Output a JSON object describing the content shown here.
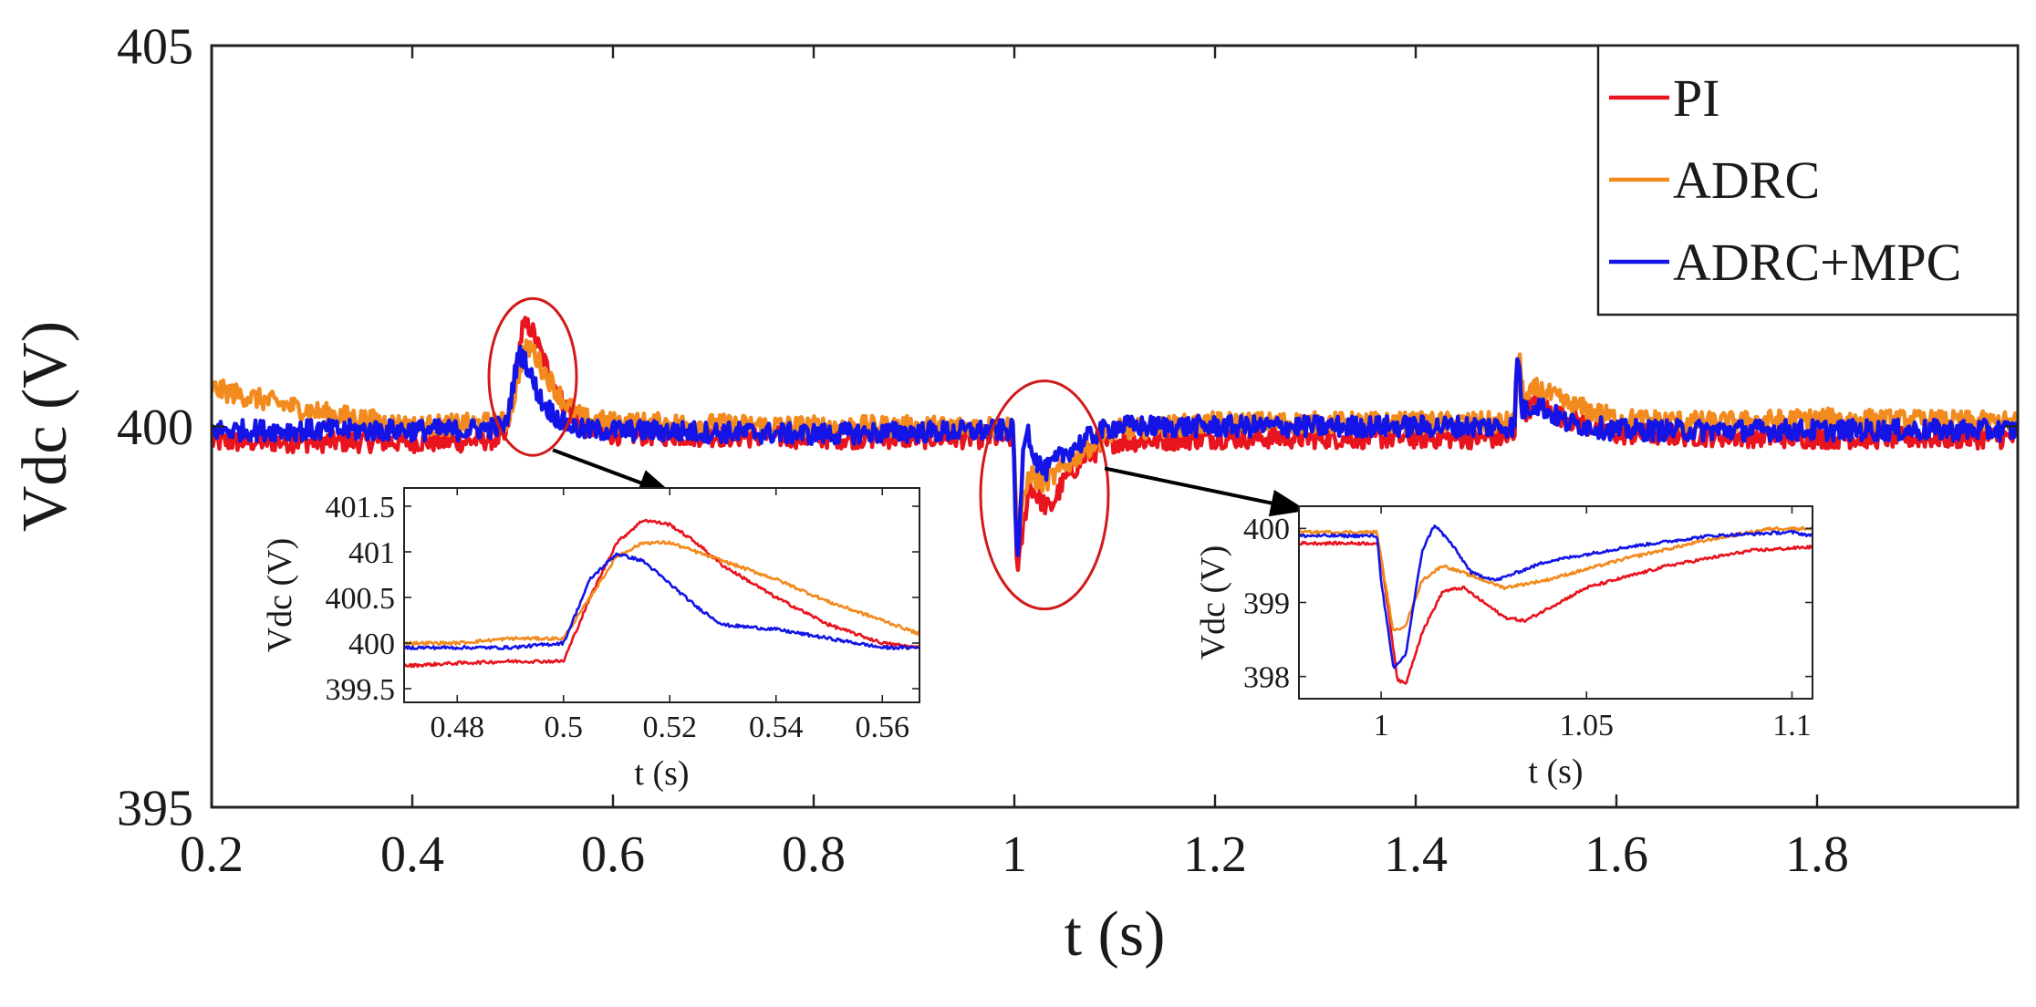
{
  "colors": {
    "PI": "#e8141e",
    "ADRC": "#f28a1e",
    "ADRC+MPC": "#1414e6",
    "callout": "#d11a1a",
    "axis": "#222222"
  },
  "chart_data": [
    {
      "id": "main",
      "type": "line",
      "xlabel": "t (s)",
      "ylabel": "Vdc (V)",
      "xlim": [
        0.2,
        2.0
      ],
      "ylim": [
        395,
        405
      ],
      "xticks": [
        0.2,
        0.4,
        0.6,
        0.8,
        1,
        1.2,
        1.4,
        1.6,
        1.8
      ],
      "xtick_labels": [
        "0.2",
        "0.4",
        "0.6",
        "0.8",
        "1",
        "1.2",
        "1.4",
        "1.6",
        "1.8"
      ],
      "yticks": [
        395,
        400,
        405
      ],
      "ytick_labels": [
        "395",
        "400",
        "405"
      ],
      "legend": {
        "position": "top-right",
        "entries": [
          "PI",
          "ADRC",
          "ADRC+MPC"
        ]
      },
      "series": [
        {
          "name": "PI",
          "points": [
            [
              0.2,
              399.8
            ],
            [
              0.45,
              399.8
            ],
            [
              0.493,
              399.85
            ],
            [
              0.5,
              400.4
            ],
            [
              0.51,
              401.3
            ],
            [
              0.518,
              401.3
            ],
            [
              0.53,
              400.9
            ],
            [
              0.55,
              400.3
            ],
            [
              0.57,
              400.0
            ],
            [
              0.6,
              399.9
            ],
            [
              0.8,
              399.85
            ],
            [
              0.999,
              399.85
            ],
            [
              1.0,
              399.6
            ],
            [
              1.003,
              398.0
            ],
            [
              1.008,
              398.6
            ],
            [
              1.015,
              399.25
            ],
            [
              1.022,
              399.1
            ],
            [
              1.035,
              398.9
            ],
            [
              1.05,
              399.3
            ],
            [
              1.07,
              399.6
            ],
            [
              1.1,
              399.8
            ],
            [
              1.2,
              399.85
            ],
            [
              1.499,
              399.85
            ],
            [
              1.5,
              400.6
            ],
            [
              1.503,
              400.8
            ],
            [
              1.508,
              400.2
            ],
            [
              1.52,
              400.3
            ],
            [
              1.55,
              400.1
            ],
            [
              1.6,
              399.9
            ],
            [
              1.8,
              399.85
            ],
            [
              2.0,
              399.85
            ]
          ]
        },
        {
          "name": "ADRC",
          "points": [
            [
              0.2,
              400.5
            ],
            [
              0.3,
              400.2
            ],
            [
              0.4,
              400.0
            ],
            [
              0.493,
              400.05
            ],
            [
              0.5,
              400.3
            ],
            [
              0.51,
              400.95
            ],
            [
              0.518,
              401.05
            ],
            [
              0.53,
              400.75
            ],
            [
              0.55,
              400.35
            ],
            [
              0.57,
              400.1
            ],
            [
              0.6,
              400.05
            ],
            [
              0.8,
              400.0
            ],
            [
              0.999,
              400.0
            ],
            [
              1.0,
              399.7
            ],
            [
              1.003,
              398.5
            ],
            [
              1.008,
              398.9
            ],
            [
              1.015,
              399.4
            ],
            [
              1.025,
              399.25
            ],
            [
              1.04,
              399.35
            ],
            [
              1.07,
              399.7
            ],
            [
              1.1,
              399.95
            ],
            [
              1.2,
              400.05
            ],
            [
              1.499,
              400.05
            ],
            [
              1.5,
              400.5
            ],
            [
              1.503,
              400.9
            ],
            [
              1.508,
              400.3
            ],
            [
              1.52,
              400.5
            ],
            [
              1.55,
              400.3
            ],
            [
              1.6,
              400.1
            ],
            [
              1.7,
              400.05
            ],
            [
              1.8,
              400.1
            ],
            [
              2.0,
              400.05
            ]
          ]
        },
        {
          "name": "ADRC+MPC",
          "points": [
            [
              0.2,
              399.95
            ],
            [
              0.45,
              399.95
            ],
            [
              0.493,
              400.0
            ],
            [
              0.5,
              400.5
            ],
            [
              0.505,
              400.9
            ],
            [
              0.51,
              400.95
            ],
            [
              0.52,
              400.6
            ],
            [
              0.53,
              400.3
            ],
            [
              0.55,
              400.05
            ],
            [
              0.57,
              399.95
            ],
            [
              0.6,
              399.95
            ],
            [
              0.8,
              399.9
            ],
            [
              0.999,
              399.95
            ],
            [
              1.0,
              399.5
            ],
            [
              1.003,
              398.0
            ],
            [
              1.008,
              399.5
            ],
            [
              1.012,
              400.05
            ],
            [
              1.02,
              399.6
            ],
            [
              1.03,
              399.4
            ],
            [
              1.05,
              399.65
            ],
            [
              1.08,
              399.9
            ],
            [
              1.1,
              400.0
            ],
            [
              1.2,
              400.0
            ],
            [
              1.499,
              400.0
            ],
            [
              1.5,
              400.6
            ],
            [
              1.502,
              401.0
            ],
            [
              1.506,
              400.2
            ],
            [
              1.52,
              400.3
            ],
            [
              1.55,
              400.05
            ],
            [
              1.6,
              399.95
            ],
            [
              2.0,
              399.95
            ]
          ]
        }
      ]
    },
    {
      "id": "inset-left",
      "type": "line",
      "xlabel": "t (s)",
      "ylabel": "Vdc (V)",
      "xlim": [
        0.47,
        0.567
      ],
      "ylim": [
        399.35,
        401.7
      ],
      "xticks": [
        0.48,
        0.5,
        0.52,
        0.54,
        0.56
      ],
      "xtick_labels": [
        "0.48",
        "0.5",
        "0.52",
        "0.54",
        "0.56"
      ],
      "yticks": [
        399.5,
        400,
        400.5,
        401,
        401.5
      ],
      "ytick_labels": [
        "399.5",
        "400",
        "400.5",
        "401",
        "401.5"
      ],
      "series": [
        {
          "name": "PI",
          "points": [
            [
              0.47,
              399.75
            ],
            [
              0.48,
              399.78
            ],
            [
              0.49,
              399.8
            ],
            [
              0.5,
              399.8
            ],
            [
              0.505,
              400.5
            ],
            [
              0.51,
              401.1
            ],
            [
              0.515,
              401.35
            ],
            [
              0.52,
              401.3
            ],
            [
              0.525,
              401.1
            ],
            [
              0.53,
              400.85
            ],
            [
              0.54,
              400.5
            ],
            [
              0.55,
              400.2
            ],
            [
              0.56,
              400.0
            ],
            [
              0.567,
              399.95
            ]
          ]
        },
        {
          "name": "ADRC",
          "points": [
            [
              0.47,
              400.0
            ],
            [
              0.48,
              400.0
            ],
            [
              0.49,
              400.05
            ],
            [
              0.5,
              400.05
            ],
            [
              0.505,
              400.5
            ],
            [
              0.51,
              400.95
            ],
            [
              0.515,
              401.1
            ],
            [
              0.52,
              401.1
            ],
            [
              0.525,
              401.0
            ],
            [
              0.53,
              400.9
            ],
            [
              0.54,
              400.7
            ],
            [
              0.55,
              400.45
            ],
            [
              0.56,
              400.25
            ],
            [
              0.567,
              400.1
            ]
          ]
        },
        {
          "name": "ADRC+MPC",
          "points": [
            [
              0.47,
              399.95
            ],
            [
              0.48,
              399.95
            ],
            [
              0.49,
              399.95
            ],
            [
              0.5,
              400.0
            ],
            [
              0.505,
              400.7
            ],
            [
              0.51,
              400.98
            ],
            [
              0.515,
              400.9
            ],
            [
              0.52,
              400.65
            ],
            [
              0.525,
              400.4
            ],
            [
              0.53,
              400.2
            ],
            [
              0.54,
              400.15
            ],
            [
              0.55,
              400.05
            ],
            [
              0.56,
              399.95
            ],
            [
              0.567,
              399.95
            ]
          ]
        }
      ]
    },
    {
      "id": "inset-right",
      "type": "line",
      "xlabel": "t (s)",
      "ylabel": "Vdc (V)",
      "xlim": [
        0.98,
        1.105
      ],
      "ylim": [
        397.7,
        400.3
      ],
      "xticks": [
        1,
        1.05,
        1.1
      ],
      "xtick_labels": [
        "1",
        "1.05",
        "1.1"
      ],
      "yticks": [
        398,
        399,
        400
      ],
      "ytick_labels": [
        "398",
        "399",
        "400"
      ],
      "series": [
        {
          "name": "PI",
          "points": [
            [
              0.98,
              399.8
            ],
            [
              0.999,
              399.8
            ],
            [
              1.0,
              399.6
            ],
            [
              1.002,
              398.8
            ],
            [
              1.004,
              397.95
            ],
            [
              1.006,
              397.9
            ],
            [
              1.01,
              398.6
            ],
            [
              1.015,
              399.15
            ],
            [
              1.02,
              399.2
            ],
            [
              1.025,
              399.0
            ],
            [
              1.03,
              398.8
            ],
            [
              1.035,
              398.75
            ],
            [
              1.05,
              399.2
            ],
            [
              1.07,
              399.5
            ],
            [
              1.09,
              399.7
            ],
            [
              1.105,
              399.75
            ]
          ]
        },
        {
          "name": "ADRC",
          "points": [
            [
              0.98,
              399.95
            ],
            [
              0.999,
              399.95
            ],
            [
              1.0,
              399.6
            ],
            [
              1.003,
              398.6
            ],
            [
              1.006,
              398.7
            ],
            [
              1.01,
              399.3
            ],
            [
              1.015,
              399.5
            ],
            [
              1.02,
              399.4
            ],
            [
              1.03,
              399.2
            ],
            [
              1.04,
              399.3
            ],
            [
              1.06,
              399.6
            ],
            [
              1.08,
              399.85
            ],
            [
              1.095,
              400.0
            ],
            [
              1.105,
              400.0
            ]
          ]
        },
        {
          "name": "ADRC+MPC",
          "points": [
            [
              0.98,
              399.9
            ],
            [
              0.999,
              399.9
            ],
            [
              1.0,
              399.3
            ],
            [
              1.003,
              398.1
            ],
            [
              1.006,
              398.3
            ],
            [
              1.01,
              399.7
            ],
            [
              1.013,
              400.05
            ],
            [
              1.017,
              399.8
            ],
            [
              1.022,
              399.4
            ],
            [
              1.028,
              399.3
            ],
            [
              1.04,
              399.55
            ],
            [
              1.06,
              399.75
            ],
            [
              1.08,
              399.9
            ],
            [
              1.1,
              399.95
            ],
            [
              1.105,
              399.9
            ]
          ]
        }
      ]
    }
  ]
}
